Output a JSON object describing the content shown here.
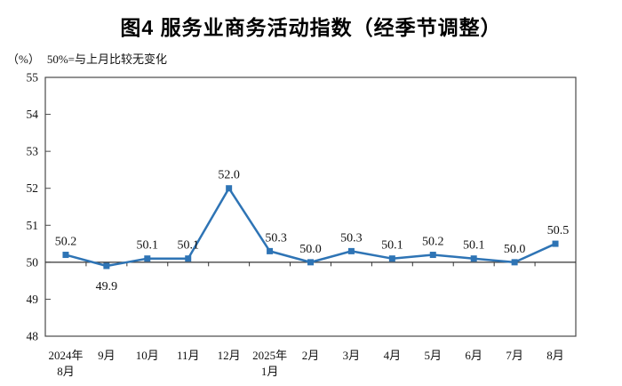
{
  "chart_data": {
    "type": "line",
    "title": "图4 服务业商务活动指数（经季节调整）",
    "unit_label": "（%）",
    "note": "50%=与上月比较无变化",
    "categories": [
      "2024年\n8月",
      "9月",
      "10月",
      "11月",
      "12月",
      "2025年\n1月",
      "2月",
      "3月",
      "4月",
      "5月",
      "6月",
      "7月",
      "8月"
    ],
    "values": [
      50.2,
      49.9,
      50.1,
      50.1,
      52.0,
      50.3,
      50.0,
      50.3,
      50.1,
      50.2,
      50.1,
      50.0,
      50.5
    ],
    "ylim": [
      48,
      55
    ],
    "y_ticks": [
      48,
      49,
      50,
      51,
      52,
      53,
      54,
      55
    ],
    "baseline_value": 50,
    "legend_position": "none",
    "grid": false,
    "colors": {
      "line": "#2E74B5",
      "marker": "#2E74B5",
      "axis": "#4a4a4a",
      "text": "#111111"
    }
  }
}
